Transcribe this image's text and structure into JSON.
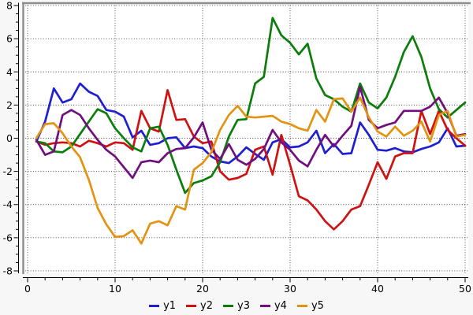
{
  "figure": {
    "background": "#f7f7f7",
    "plot_background": "#ffffff",
    "border_color": "#8c8c8c",
    "grid_color": "#3a3a3a",
    "axis_color": "#000000",
    "tick_label_color": "#0a0a0a"
  },
  "chart_data": {
    "type": "line",
    "title": "",
    "xlabel": "",
    "ylabel": "",
    "xlim": [
      -0.5,
      50.4
    ],
    "ylim": [
      -8.15,
      8.15
    ],
    "grid": "dotted",
    "legend_position": "bottom-center",
    "xticks": [
      0,
      10,
      20,
      30,
      40,
      50
    ],
    "xtick_labels": [
      "0",
      "10",
      "20",
      "30",
      "40",
      "50"
    ],
    "x_minor_step": 2,
    "yticks": [
      -8,
      -6,
      -4,
      -2,
      0,
      2,
      4,
      6,
      8
    ],
    "ytick_labels": [
      "-8",
      "-6",
      "-4",
      "-2",
      "0",
      "2",
      "4",
      "6",
      "8"
    ],
    "y_minor_step": 0.5,
    "x": [
      1,
      2,
      3,
      4,
      5,
      6,
      7,
      8,
      9,
      10,
      11,
      12,
      13,
      14,
      15,
      16,
      17,
      18,
      19,
      20,
      21,
      22,
      23,
      24,
      25,
      26,
      27,
      28,
      29,
      30,
      31,
      32,
      33,
      34,
      35,
      36,
      37,
      38,
      39,
      40,
      41,
      42,
      43,
      44,
      45,
      46,
      47,
      48,
      49,
      50
    ],
    "series": [
      {
        "name": "y1",
        "color": "#1f1fd0",
        "values": [
          -0.2,
          1.0,
          3.0,
          2.15,
          2.35,
          3.3,
          2.8,
          2.55,
          1.7,
          1.6,
          1.3,
          0.05,
          0.45,
          -0.4,
          -0.3,
          0.0,
          0.05,
          -0.6,
          -0.5,
          -0.6,
          -1.1,
          -1.4,
          -1.5,
          -1.1,
          -0.55,
          -0.95,
          -1.3,
          -0.25,
          -0.05,
          -0.55,
          -0.5,
          -0.25,
          0.45,
          -0.9,
          -0.35,
          -0.95,
          -0.9,
          0.95,
          0.2,
          -0.7,
          -0.75,
          -0.6,
          -0.8,
          -0.85,
          -0.65,
          -0.5,
          -0.25,
          0.6,
          -0.5,
          -0.45
        ]
      },
      {
        "name": "y2",
        "color": "#ce1212",
        "values": [
          -0.2,
          -0.4,
          -0.3,
          -0.25,
          -0.3,
          -0.5,
          -0.15,
          -0.3,
          -0.5,
          -0.25,
          -0.3,
          -0.7,
          1.65,
          0.6,
          0.4,
          2.9,
          1.1,
          1.15,
          0.1,
          -0.3,
          -0.2,
          -2.0,
          -2.5,
          -2.4,
          -2.15,
          -0.7,
          -0.5,
          -2.2,
          0.2,
          -1.6,
          -3.5,
          -3.75,
          -4.3,
          -5.0,
          -5.5,
          -5.0,
          -4.3,
          -4.1,
          -2.8,
          -1.45,
          -2.45,
          -1.1,
          -0.9,
          -0.9,
          1.65,
          0.25,
          1.65,
          0.5,
          0.0,
          -0.45
        ]
      },
      {
        "name": "y3",
        "color": "#0a7d0a",
        "values": [
          -0.2,
          -0.3,
          -0.8,
          -0.85,
          -0.5,
          0.25,
          1.0,
          1.75,
          1.5,
          0.6,
          0.0,
          -0.55,
          -0.8,
          0.6,
          0.7,
          -0.4,
          -1.9,
          -3.3,
          -2.7,
          -2.55,
          -2.3,
          -1.45,
          0.1,
          1.1,
          1.15,
          3.3,
          3.7,
          7.25,
          6.2,
          5.75,
          5.05,
          5.7,
          3.6,
          2.6,
          2.35,
          1.9,
          1.6,
          3.3,
          2.15,
          1.8,
          2.45,
          3.7,
          5.2,
          6.15,
          4.9,
          3.0,
          1.75,
          1.25,
          1.7,
          2.15
        ]
      },
      {
        "name": "y4",
        "color": "#700f7d",
        "values": [
          -0.1,
          -1.0,
          -0.8,
          1.4,
          1.7,
          1.4,
          0.6,
          -0.1,
          -0.7,
          -1.1,
          -1.75,
          -2.4,
          -1.45,
          -1.35,
          -1.45,
          -0.9,
          -0.65,
          -0.6,
          0.05,
          0.95,
          -0.7,
          -1.25,
          -0.35,
          -1.3,
          -1.6,
          -1.25,
          -0.65,
          0.5,
          -0.25,
          -0.7,
          -1.35,
          -1.7,
          -0.7,
          0.2,
          -0.5,
          0.15,
          0.75,
          3.1,
          1.1,
          0.6,
          0.8,
          0.95,
          1.65,
          1.65,
          1.65,
          1.9,
          2.45,
          1.5,
          0.15,
          0.25
        ]
      },
      {
        "name": "y5",
        "color": "#e39312",
        "values": [
          0.0,
          0.85,
          0.9,
          0.3,
          -0.5,
          -1.15,
          -2.5,
          -4.2,
          -5.2,
          -5.95,
          -5.9,
          -5.55,
          -6.35,
          -5.15,
          -5.0,
          -5.25,
          -4.1,
          -4.3,
          -1.9,
          -1.5,
          -0.85,
          0.5,
          1.4,
          1.95,
          1.3,
          1.25,
          1.3,
          1.35,
          1.0,
          0.85,
          0.6,
          0.45,
          1.7,
          1.0,
          2.35,
          2.4,
          1.6,
          2.45,
          1.25,
          0.4,
          0.1,
          0.7,
          0.15,
          0.45,
          1.0,
          -0.2,
          1.4,
          1.65,
          0.1,
          0.2
        ]
      }
    ]
  }
}
